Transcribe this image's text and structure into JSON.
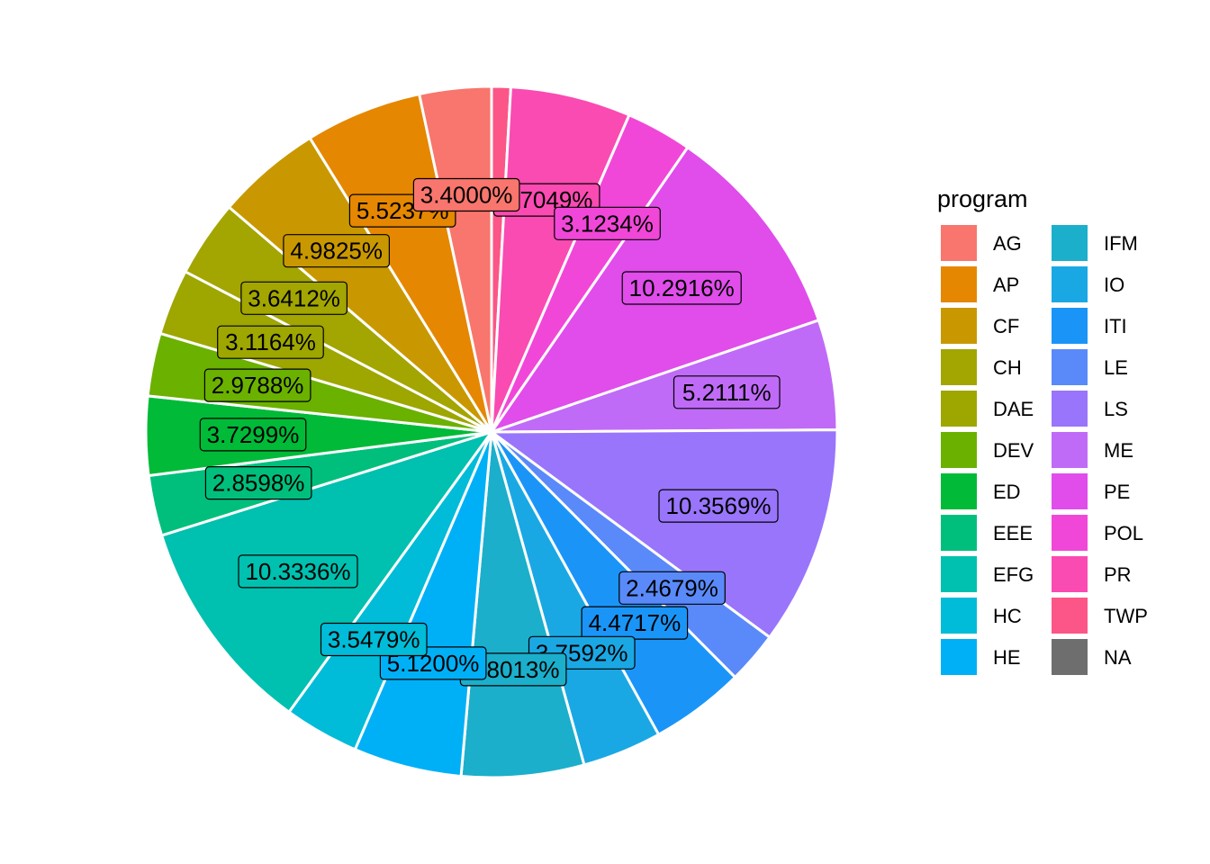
{
  "chart_data": {
    "type": "pie",
    "legend": {
      "title": "program",
      "placement": "right",
      "columns": [
        [
          "AG",
          "AP",
          "CF",
          "CH",
          "DAE",
          "DEV",
          "ED",
          "EEE",
          "EFG",
          "HC",
          "HE"
        ],
        [
          "IFM",
          "IO",
          "ITI",
          "LE",
          "LS",
          "ME",
          "PE",
          "POL",
          "PR",
          "TWP",
          "NA"
        ]
      ]
    },
    "colors": {
      "AG": "#F8766D",
      "AP": "#E58700",
      "CF": "#C99800",
      "CH": "#A3A500",
      "DAE": "#9EA600",
      "DEV": "#6BB100",
      "ED": "#00BA38",
      "EEE": "#00BF7D",
      "EFG": "#00C0AF",
      "HC": "#00BCD8",
      "HE": "#00B0F6",
      "IFM": "#1BAFCB",
      "IO": "#1AA8E4",
      "ITI": "#1A95F7",
      "LE": "#5A8AF9",
      "LS": "#9975FB",
      "ME": "#C06BF7",
      "PE": "#E04DEB",
      "POL": "#F147D8",
      "PR": "#FA4BB2",
      "TWP": "#FB5687",
      "NA": "#6E6E6E"
    },
    "categories": [
      "TWP",
      "PR",
      "POL",
      "PE",
      "ME",
      "LS",
      "LE",
      "ITI",
      "IO",
      "IFM",
      "HE",
      "HC",
      "EFG",
      "EEE",
      "ED",
      "DEV",
      "DAE",
      "CH",
      "CF",
      "AP",
      "AG"
    ],
    "values": [
      0.9,
      5.7049,
      3.1234,
      10.2916,
      5.2111,
      10.3569,
      2.4679,
      4.4717,
      3.7592,
      5.8013,
      5.12,
      3.5479,
      10.3336,
      2.8598,
      3.7299,
      2.9788,
      3.1164,
      3.6412,
      4.9825,
      5.5237,
      3.4
    ],
    "data_labels": [
      "",
      "5.7049%",
      "3.1234%",
      "10.2916%",
      "5.2111%",
      "10.3569%",
      "2.4679%",
      "4.4717%",
      "3.7592%",
      "5.8013%",
      "5.1200%",
      "3.5479%",
      "10.3336%",
      "2.8598%",
      "3.7299%",
      "2.9788%",
      "3.1164%",
      "3.6412%",
      "4.9825%",
      "5.5237%",
      "3.4000%"
    ]
  }
}
